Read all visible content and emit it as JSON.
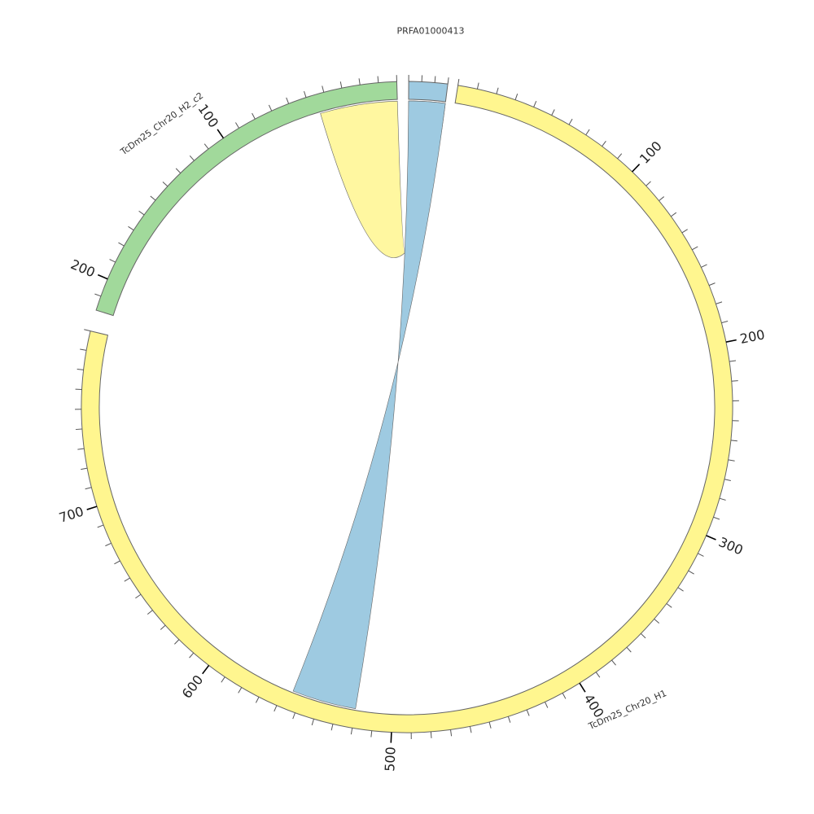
{
  "chart_data": {
    "type": "circos",
    "segments": [
      {
        "id": "seg-h1",
        "label": "TcDm25_Chr20_H1",
        "length": 790,
        "color": "#fff68f",
        "major_ticks": [
          100,
          200,
          300,
          400,
          500,
          600,
          700
        ]
      },
      {
        "id": "seg-h2",
        "label": "TcDm25_Chr20_H2_c2",
        "length": 218,
        "color": "#a1d99b",
        "major_ticks": [
          100,
          200
        ]
      },
      {
        "id": "seg-prfa",
        "label": "PRFA01000413",
        "length": 30,
        "color": "#9ecae1",
        "major_ticks": []
      }
    ],
    "links": [
      {
        "color": "#fff68f",
        "opacity": 0.85,
        "source": {
          "segment": "PRFA01000413",
          "start": 0,
          "end": 30
        },
        "target": {
          "segment": "TcDm25_Chr20_H2_c2",
          "start": 0,
          "end": 45
        }
      },
      {
        "color": "#9ecae1",
        "opacity": 1,
        "source": {
          "segment": "PRFA01000413",
          "start": 0,
          "end": 30
        },
        "target": {
          "segment": "TcDm25_Chr20_H1",
          "start": 520,
          "end": 555
        }
      }
    ]
  }
}
